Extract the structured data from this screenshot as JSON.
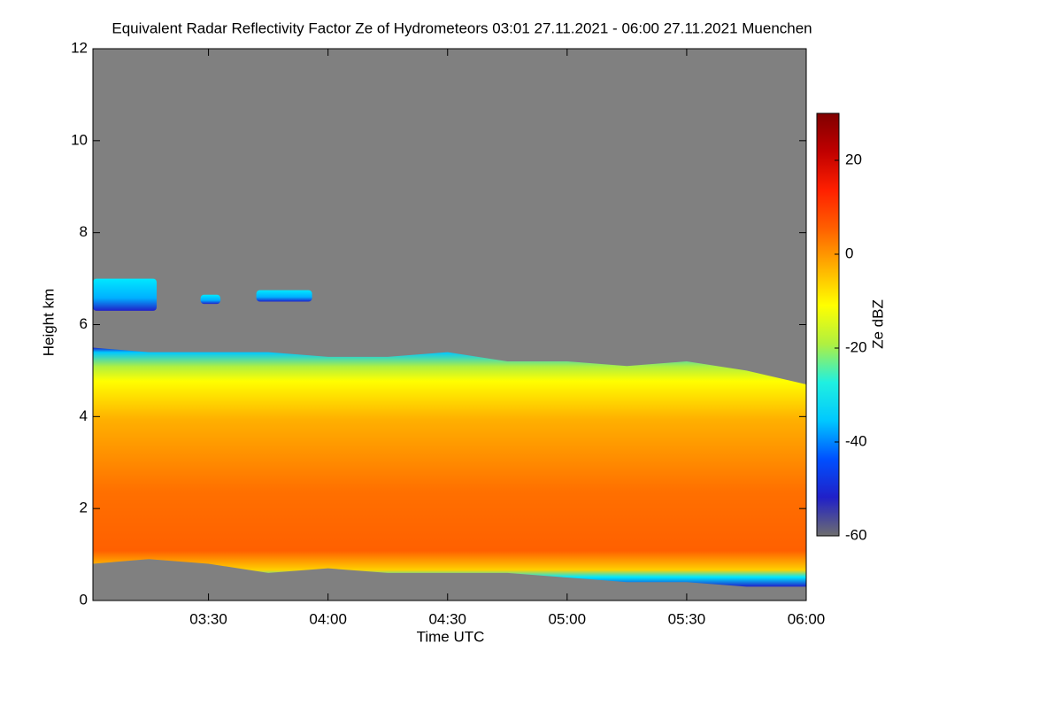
{
  "chart_data": {
    "type": "heatmap",
    "title": "Equivalent Radar Reflectivity Factor Ze of Hydrometeors   03:01 27.11.2021 - 06:00 27.11.2021 Muenchen",
    "x_label": "Time UTC",
    "y_label": "Height km",
    "colorbar_label": "Ze dBZ",
    "x": [
      181,
      195,
      210,
      225,
      240,
      255,
      270,
      285,
      300,
      315,
      330,
      345,
      360
    ],
    "echo_top": [
      5.5,
      5.4,
      5.4,
      5.4,
      5.3,
      5.3,
      5.4,
      5.2,
      5.2,
      5.1,
      5.2,
      5.0,
      4.7
    ],
    "echo_base": [
      0.8,
      0.9,
      0.8,
      0.6,
      0.7,
      0.6,
      0.6,
      0.6,
      0.5,
      0.4,
      0.4,
      0.3,
      0.3
    ],
    "upper_patches": [
      {
        "x0": 181,
        "x1": 197,
        "base": 6.3,
        "top": 7.0
      },
      {
        "x0": 208,
        "x1": 213,
        "base": 6.45,
        "top": 6.65
      },
      {
        "x0": 222,
        "x1": 236,
        "base": 6.5,
        "top": 6.75
      }
    ],
    "xlim": [
      181,
      360
    ],
    "xticks": [
      {
        "value": 210,
        "label": "03:30"
      },
      {
        "value": 240,
        "label": "04:00"
      },
      {
        "value": 270,
        "label": "04:30"
      },
      {
        "value": 300,
        "label": "05:00"
      },
      {
        "value": 330,
        "label": "05:30"
      },
      {
        "value": 360,
        "label": "06:00"
      }
    ],
    "ylim": [
      0,
      12
    ],
    "yticks": [
      0,
      2,
      4,
      6,
      8,
      10,
      12
    ],
    "clim": [
      -60,
      30
    ],
    "cticks": [
      -60,
      -40,
      -20,
      0,
      20
    ],
    "background_color": "#808080",
    "colormap": [
      "#6e6e6e",
      "#2020c8",
      "#0050ff",
      "#00c8ff",
      "#20f0e0",
      "#b0f040",
      "#ffff00",
      "#ffb000",
      "#ff6000",
      "#ff2000",
      "#c00000",
      "#800000"
    ]
  }
}
